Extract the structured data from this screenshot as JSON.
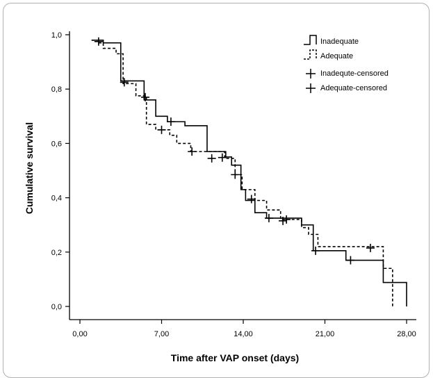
{
  "chart_data": {
    "type": "line",
    "subtype": "kaplan-meier-step",
    "xlabel": "Time after VAP onset (days)",
    "ylabel": "Cumulative survival",
    "xlim": [
      0,
      28
    ],
    "ylim": [
      0,
      1
    ],
    "xticks": [
      "0,00",
      "7,00",
      "14,00",
      "21,00",
      "28,00"
    ],
    "xtick_values": [
      0,
      7,
      14,
      21,
      28
    ],
    "yticks": [
      "0,0",
      "0,2",
      "0,4",
      "0,6",
      "0,8",
      "1,0"
    ],
    "ytick_values": [
      0,
      0.2,
      0.4,
      0.6,
      0.8,
      1.0
    ],
    "grid": false,
    "legend_position": "top-right",
    "legend": [
      "Inadequate",
      "Adequate",
      "Inadequte-censored",
      "Adequate-censored"
    ],
    "series": [
      {
        "name": "Inadequate",
        "style": "solid",
        "steps": [
          [
            1.0,
            0.98
          ],
          [
            2.0,
            0.97
          ],
          [
            3.5,
            0.83
          ],
          [
            5.5,
            0.76
          ],
          [
            6.5,
            0.7
          ],
          [
            7.5,
            0.68
          ],
          [
            9.0,
            0.665
          ],
          [
            10.9,
            0.57
          ],
          [
            12.5,
            0.55
          ],
          [
            13.0,
            0.52
          ],
          [
            13.8,
            0.43
          ],
          [
            14.2,
            0.39
          ],
          [
            15.0,
            0.345
          ],
          [
            16.0,
            0.325
          ],
          [
            19.0,
            0.3
          ],
          [
            20.0,
            0.205
          ],
          [
            22.8,
            0.17
          ],
          [
            26.0,
            0.088
          ],
          [
            28.0,
            0.0
          ]
        ],
        "censored": [
          [
            3.8,
            0.825
          ],
          [
            7.8,
            0.68
          ],
          [
            11.3,
            0.545
          ],
          [
            13.3,
            0.485
          ],
          [
            16.2,
            0.325
          ],
          [
            17.4,
            0.315
          ],
          [
            20.2,
            0.205
          ],
          [
            23.2,
            0.17
          ]
        ]
      },
      {
        "name": "Adequate",
        "style": "dashed",
        "steps": [
          [
            1.0,
            0.98
          ],
          [
            1.6,
            0.97
          ],
          [
            2.0,
            0.95
          ],
          [
            3.1,
            0.93
          ],
          [
            3.7,
            0.82
          ],
          [
            4.8,
            0.775
          ],
          [
            5.7,
            0.67
          ],
          [
            6.5,
            0.65
          ],
          [
            7.7,
            0.63
          ],
          [
            8.3,
            0.6
          ],
          [
            9.5,
            0.57
          ],
          [
            12.4,
            0.545
          ],
          [
            13.3,
            0.485
          ],
          [
            13.9,
            0.43
          ],
          [
            15.0,
            0.39
          ],
          [
            16.0,
            0.355
          ],
          [
            17.2,
            0.32
          ],
          [
            19.0,
            0.29
          ],
          [
            19.6,
            0.265
          ],
          [
            20.4,
            0.22
          ],
          [
            26.0,
            0.14
          ],
          [
            26.8,
            0.0
          ]
        ],
        "censored": [
          [
            1.6,
            0.975
          ],
          [
            5.6,
            0.77
          ],
          [
            7.0,
            0.65
          ],
          [
            9.6,
            0.57
          ],
          [
            12.2,
            0.548
          ],
          [
            14.7,
            0.395
          ],
          [
            17.7,
            0.32
          ],
          [
            24.9,
            0.215
          ]
        ]
      }
    ]
  }
}
